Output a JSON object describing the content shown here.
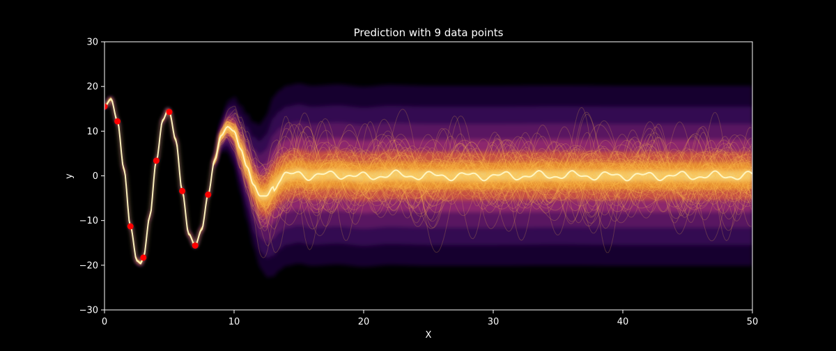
{
  "figure": {
    "background": "#000000"
  },
  "chart_data": {
    "type": "line",
    "title": "Prediction with 9 data points",
    "xlabel": "X",
    "ylabel": "y",
    "xlim": [
      0,
      50
    ],
    "ylim": [
      -30,
      30
    ],
    "xticks": [
      0,
      10,
      20,
      30,
      40,
      50
    ],
    "yticks": [
      -30,
      -20,
      -10,
      0,
      10,
      20,
      30
    ],
    "grid": false,
    "legend": "none",
    "colormap": "inferno",
    "colors": {
      "axes": "#ffffff",
      "text": "#ffffff",
      "data_points": "#ff0000",
      "samples": "#ffc04d",
      "mean": "#fffbd0"
    },
    "data_points": {
      "x": [
        0,
        1,
        2,
        3,
        4,
        5,
        6,
        7,
        8
      ],
      "y": [
        15.5,
        12.2,
        -11.3,
        -18.3,
        3.4,
        14.3,
        -3.4,
        -15.6,
        -4.2
      ]
    },
    "posterior_mean": {
      "x": [
        0,
        0.5,
        1,
        1.5,
        2,
        2.5,
        2.8,
        3,
        3.5,
        4,
        4.5,
        4.9,
        5,
        5.5,
        6,
        6.5,
        7,
        7.5,
        8,
        8.5,
        9,
        9.5,
        10,
        10.5,
        11,
        11.5,
        12,
        12.5,
        13,
        13.5,
        14,
        15,
        16,
        18,
        20,
        22,
        25,
        30,
        35,
        40,
        45,
        50
      ],
      "y": [
        15.5,
        17.2,
        12.2,
        1.5,
        -11.3,
        -19,
        -19.6,
        -18.3,
        -9,
        3.4,
        12.5,
        14.7,
        14.3,
        8,
        -3.4,
        -13,
        -15.6,
        -12,
        -4.2,
        3.5,
        9,
        11,
        10,
        6,
        2,
        -2,
        -4.5,
        -4.5,
        -2.5,
        -1,
        0,
        0.5,
        0,
        0.3,
        -0.2,
        0.2,
        0,
        0,
        0.1,
        0,
        0,
        0
      ]
    }
  }
}
